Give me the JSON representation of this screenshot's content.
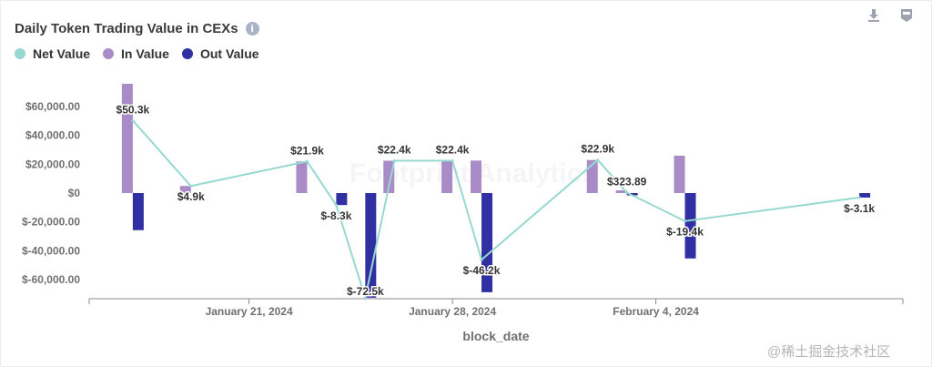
{
  "toolbar": {
    "download_icon": "download-icon",
    "api_icon": "api-icon"
  },
  "watermark": "@稀土掘金技术社区",
  "chart_data": {
    "type": "bar",
    "title": "Daily Token Trading Value in CEXs",
    "xlabel": "block_date",
    "ylabel": "",
    "ylim": [
      -72500,
      75000
    ],
    "y_ticks": [
      60000,
      40000,
      20000,
      0,
      -20000,
      -40000,
      -60000
    ],
    "y_tick_labels": [
      "$60,000.00",
      "$40,000.00",
      "$20,000.00",
      "$0",
      "$-20,000.00",
      "$-40,000.00",
      "$-60,000.00"
    ],
    "x_tick_labels": [
      "January 21, 2024",
      "January 28, 2024",
      "February 4, 2024"
    ],
    "x_tick_days": [
      21,
      28,
      35
    ],
    "grid": false,
    "legend": "top-left",
    "days": [
      17,
      19,
      23,
      24,
      25,
      26,
      28,
      29,
      33,
      34,
      36,
      42
    ],
    "series": [
      {
        "name": "Net Value",
        "kind": "line",
        "color": "#97d8d0",
        "values": [
          50300,
          4900,
          21900,
          -8300,
          -72500,
          22400,
          22400,
          -46200,
          22900,
          323.89,
          -19400,
          -3100
        ],
        "labels": [
          "$50.3k",
          "$4.9k",
          "$21.9k",
          "$-8.3k",
          "$-72.5k",
          "$22.4k",
          "$22.4k",
          "$-46.2k",
          "$22.9k",
          "$323.89",
          "$-19.4k",
          "$-3.1k"
        ]
      },
      {
        "name": "In Value",
        "kind": "bar",
        "color": "#a98bc8",
        "values": [
          76000,
          4900,
          21900,
          0,
          0,
          22400,
          22400,
          22500,
          22900,
          1900,
          25900,
          0
        ]
      },
      {
        "name": "Out Value",
        "kind": "bar",
        "color": "#3030a3",
        "values": [
          -25700,
          0,
          0,
          -8300,
          -72500,
          0,
          0,
          -68700,
          0,
          -1600,
          -45300,
          -3100
        ]
      }
    ]
  }
}
